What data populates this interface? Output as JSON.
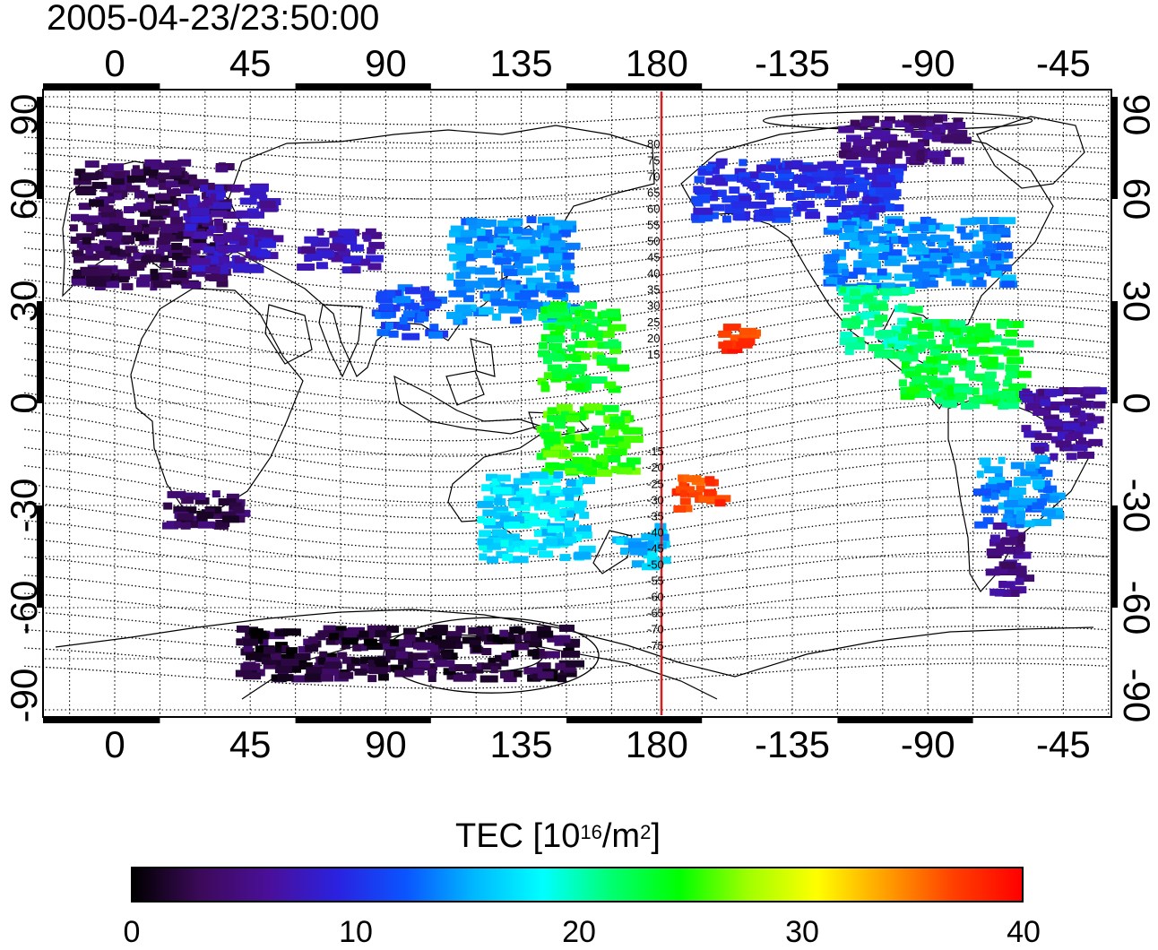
{
  "timestamp": "2005-04-23/23:50:00",
  "map": {
    "projection": "equirectangular",
    "lon_center": 150,
    "lon_range": [
      -30,
      330
    ],
    "lat_range": [
      -90,
      90
    ],
    "graticule": "dotted every 15 degrees",
    "top_lon_labels": [
      "0",
      "45",
      "90",
      "135",
      "180",
      "-135",
      "-90",
      "-45"
    ],
    "bottom_lon_labels": [
      "0",
      "45",
      "90",
      "135",
      "180",
      "-135",
      "-90",
      "-45"
    ],
    "left_lat_labels": [
      "90",
      "60",
      "30",
      "0",
      "-30",
      "-60",
      "-90"
    ],
    "right_lat_labels": [
      "90",
      "60",
      "30",
      "0",
      "-30",
      "-60",
      "-90"
    ],
    "dateline_color": "#d42020",
    "magnetic_contours": "geomagnetic latitude isolines every 5 degrees",
    "dateline_labels": [
      "80",
      "75",
      "70",
      "65",
      "60",
      "55",
      "50",
      "45",
      "40",
      "35",
      "30",
      "25",
      "20",
      "15",
      "-15",
      "-20",
      "-25",
      "-30",
      "-35",
      "-40",
      "-45",
      "-50",
      "-55",
      "-60",
      "-65",
      "-70",
      "-75"
    ]
  },
  "colorbar": {
    "title_prefix": "TEC  [10",
    "title_exp1": "16",
    "title_mid": "/m",
    "title_exp2": "2",
    "title_suffix": "]",
    "min": 0,
    "max": 40,
    "tick_labels": [
      "0",
      "10",
      "20",
      "30",
      "40"
    ],
    "colormap": [
      "#000000",
      "#3c0a5a",
      "#4a0f9a",
      "#2a22e0",
      "#0a55ff",
      "#00b8ff",
      "#00ffff",
      "#00ff70",
      "#00ff00",
      "#a0ff00",
      "#ffff00",
      "#ffa000",
      "#ff4000",
      "#ff0000"
    ]
  },
  "chart_data": {
    "type": "heatmap",
    "variable": "TEC",
    "unit": "10^16/m^2",
    "value_range": [
      0,
      40
    ],
    "regions": [
      {
        "lon": [
          -15,
          35
        ],
        "lat": [
          35,
          72
        ],
        "tec": 3
      },
      {
        "lon": [
          20,
          50
        ],
        "lat": [
          40,
          65
        ],
        "tec": 7
      },
      {
        "lon": [
          60,
          85
        ],
        "lat": [
          40,
          52
        ],
        "tec": 7
      },
      {
        "lon": [
          85,
          105
        ],
        "lat": [
          20,
          35
        ],
        "tec": 12
      },
      {
        "lon": [
          110,
          150
        ],
        "lat": [
          25,
          55
        ],
        "tec": 14
      },
      {
        "lon": [
          140,
          165
        ],
        "lat": [
          5,
          30
        ],
        "tec": 24
      },
      {
        "lon": [
          140,
          170
        ],
        "lat": [
          -20,
          0
        ],
        "tec": 25
      },
      {
        "lon": [
          120,
          155
        ],
        "lat": [
          -45,
          -20
        ],
        "tec": 17
      },
      {
        "lon": [
          165,
          180
        ],
        "lat": [
          -47,
          -35
        ],
        "tec": 16
      },
      {
        "lon": [
          185,
          200
        ],
        "lat": [
          -30,
          -20
        ],
        "tec": 37
      },
      {
        "lon": [
          -160,
          -150
        ],
        "lat": [
          16,
          25
        ],
        "tec": 38
      },
      {
        "lon": [
          -170,
          -100
        ],
        "lat": [
          55,
          72
        ],
        "tec": 10
      },
      {
        "lon": [
          -125,
          -65
        ],
        "lat": [
          35,
          55
        ],
        "tec": 14
      },
      {
        "lon": [
          -120,
          -95
        ],
        "lat": [
          15,
          35
        ],
        "tec": 21
      },
      {
        "lon": [
          -100,
          -60
        ],
        "lat": [
          0,
          25
        ],
        "tec": 23
      },
      {
        "lon": [
          -75,
          -50
        ],
        "lat": [
          -35,
          -15
        ],
        "tec": 14
      },
      {
        "lon": [
          -72,
          -60
        ],
        "lat": [
          -55,
          -35
        ],
        "tec": 5
      },
      {
        "lon": [
          -60,
          -35
        ],
        "lat": [
          -15,
          5
        ],
        "tec": 6
      },
      {
        "lon": [
          15,
          40
        ],
        "lat": [
          -35,
          -25
        ],
        "tec": 3
      },
      {
        "lon": [
          40,
          150
        ],
        "lat": [
          -80,
          -65
        ],
        "tec": 2
      },
      {
        "lon": [
          -120,
          -80
        ],
        "lat": [
          72,
          85
        ],
        "tec": 5
      }
    ]
  }
}
